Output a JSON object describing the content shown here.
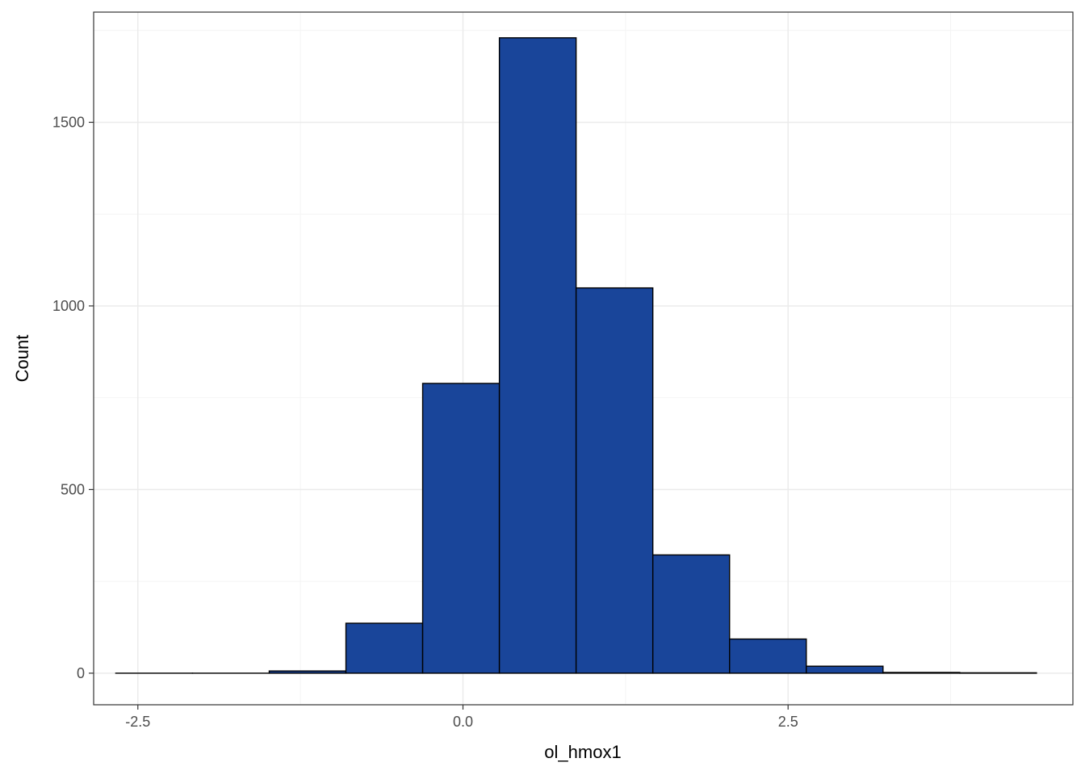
{
  "chart_data": {
    "type": "bar",
    "histogram": true,
    "xlabel": "ol_hmox1",
    "ylabel": "Count",
    "xlim": [
      -2.84,
      4.69
    ],
    "ylim": [
      -86,
      1800
    ],
    "x_ticks": [
      -2.5,
      0.0,
      2.5
    ],
    "x_tick_labels": [
      "-2.5",
      "0.0",
      "2.5"
    ],
    "y_ticks": [
      0,
      500,
      1000,
      1500
    ],
    "y_tick_labels": [
      "0",
      "500",
      "1000",
      "1500"
    ],
    "bins": [
      {
        "x0": -2.67,
        "x1": -2.08,
        "count": 0
      },
      {
        "x0": -2.08,
        "x1": -1.49,
        "count": 0
      },
      {
        "x0": -1.49,
        "x1": -0.9,
        "count": 6
      },
      {
        "x0": -0.9,
        "x1": -0.31,
        "count": 136
      },
      {
        "x0": -0.31,
        "x1": 0.28,
        "count": 789
      },
      {
        "x0": 0.28,
        "x1": 0.87,
        "count": 1730
      },
      {
        "x0": 0.87,
        "x1": 1.46,
        "count": 1049
      },
      {
        "x0": 1.46,
        "x1": 2.05,
        "count": 322
      },
      {
        "x0": 2.05,
        "x1": 2.64,
        "count": 93
      },
      {
        "x0": 2.64,
        "x1": 3.23,
        "count": 19
      },
      {
        "x0": 3.23,
        "x1": 3.82,
        "count": 2
      },
      {
        "x0": 3.82,
        "x1": 4.41,
        "count": 1
      }
    ],
    "grid": true,
    "legend": "none",
    "bar_fill": "#19459a",
    "bar_stroke": "#000000",
    "grid_major_color": "#ebebeb",
    "grid_minor_color": "#f4f4f4",
    "panel_border_color": "#333333"
  }
}
